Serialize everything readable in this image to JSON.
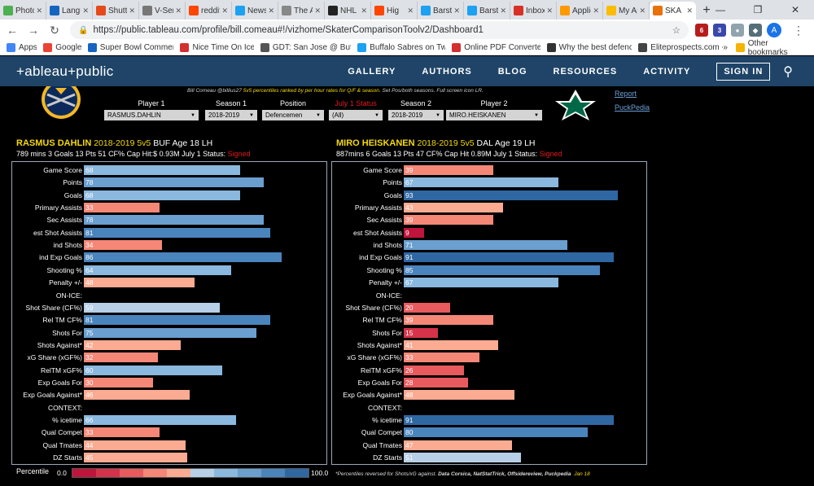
{
  "browser": {
    "tabs": [
      {
        "label": "PhotoS",
        "color": "#4caf50",
        "icon": "photo-icon"
      },
      {
        "label": "Langua",
        "color": "#1565c0",
        "icon": "medical-star-icon"
      },
      {
        "label": "Shutter",
        "color": "#e64a19",
        "icon": "shutterstock-icon"
      },
      {
        "label": "V-Serie",
        "color": "#777777",
        "icon": "page-icon"
      },
      {
        "label": "reddit:",
        "color": "#ff4500",
        "icon": "reddit-icon"
      },
      {
        "label": "News a",
        "color": "#1da1f2",
        "icon": "twitter-icon"
      },
      {
        "label": "The Au",
        "color": "#888888",
        "icon": "page-icon"
      },
      {
        "label": "NHL Ho",
        "color": "#222222",
        "icon": "nhl-icon"
      },
      {
        "label": "Hig",
        "color": "#ff4500",
        "icon": "reddit-icon"
      },
      {
        "label": "Barstoo",
        "color": "#1da1f2",
        "icon": "twitter-icon"
      },
      {
        "label": "Barstoo",
        "color": "#1da1f2",
        "icon": "twitter-icon"
      },
      {
        "label": "Inbox (",
        "color": "#d93025",
        "icon": "gmail-icon"
      },
      {
        "label": "Applica",
        "color": "#ff9900",
        "icon": "amazon-icon"
      },
      {
        "label": "My Ap",
        "color": "#fbbc04",
        "icon": "bulb-icon"
      },
      {
        "label": "SKA",
        "color": "#e8710a",
        "icon": "tableau-icon"
      }
    ],
    "new_tab": "+",
    "url": "https://public.tableau.com/profile/bill.comeau#!/vizhome/SkaterComparisonToolv2/Dashboard1",
    "bookmarks": [
      {
        "label": "Apps",
        "color": "#4285f4"
      },
      {
        "label": "Google",
        "color": "#ea4335"
      },
      {
        "label": "Super Bowl Commer",
        "color": "#1565c0"
      },
      {
        "label": "Nice Time On Ice",
        "color": "#d32f2f"
      },
      {
        "label": "GDT: San Jose @ Buf",
        "color": "#555555"
      },
      {
        "label": "Buffalo Sabres on Tw",
        "color": "#1da1f2"
      },
      {
        "label": "Online PDF Converte",
        "color": "#d32f2f"
      },
      {
        "label": "Why the best defenc",
        "color": "#333333"
      },
      {
        "label": "Eliteprospects.com -",
        "color": "#444444"
      }
    ],
    "bookmarks_more": "»",
    "other_bookmarks": "Other bookmarks",
    "avatar_letter": "A"
  },
  "tableau_header": {
    "logo": "+ableau+public",
    "nav": [
      "GALLERY",
      "AUTHORS",
      "BLOG",
      "RESOURCES",
      "ACTIVITY"
    ],
    "signin": "SIGN IN"
  },
  "dashboard": {
    "credit_prefix": "Bill Comeau @billius27  ",
    "credit_highlight": "5v5 percentiles ranked by per hour rates for Q/F & season.",
    "credit_suffix": "  Set Pos/both seasons. Full screen icon LR.",
    "filters": [
      {
        "label": "Player 1",
        "value": "RASMUS.DAHLIN",
        "red": false
      },
      {
        "label": "Season 1",
        "value": "2018-2019",
        "red": false
      },
      {
        "label": "Position",
        "value": "Defencemen",
        "red": false
      },
      {
        "label": "July 1 Status",
        "value": "(All)",
        "red": true
      },
      {
        "label": "Season 2",
        "value": "2018-2019",
        "red": false
      },
      {
        "label": "Player 2",
        "value": "MIRO.HEISKANEN",
        "red": false
      }
    ],
    "links": [
      "Report",
      "PuckPedia"
    ],
    "player1": {
      "name": "RASMUS DAHLIN",
      "season": "2018-2019",
      "strength": "5v5",
      "team": "BUF",
      "age": "Age 18",
      "hand": "LH",
      "stats": "789 mins  3  Goals  13  Pts  51  CF%  Cap Hit:$ 0.93M   July 1 Status: ",
      "status": "Signed"
    },
    "player2": {
      "name": "MIRO HEISKANEN",
      "season": "2018-2019",
      "strength": "5v5",
      "team": "DAL",
      "age": "Age 19",
      "hand": "LH",
      "stats": "887mins  6  Goals  13  Pts  47  CF%  Cap Hit  0.89M   July 1 Status: ",
      "status": "Signed"
    },
    "legend_title": "Percentile",
    "legend_min": "0.0",
    "legend_max": "100.0",
    "legend_colors": [
      "#c0143c",
      "#d6334a",
      "#e85a5e",
      "#f58777",
      "#fbab92",
      "#b7d0e8",
      "#8ab8de",
      "#6a9fcf",
      "#4a84bd",
      "#2f67a3"
    ],
    "footnote_prefix": "*Percentiles reversed for Shots/xG against. ",
    "footnote_sources": "Data Corsica, NatStatTrick, Offsidereview, Puckpedia",
    "footnote_date": "Jan 18"
  },
  "chart_data": [
    {
      "type": "bar",
      "title": "RASMUS DAHLIN 2018-2019 5v5",
      "categories": [
        "Game Score",
        "Points",
        "Goals",
        "Primary Assists",
        "Sec Assists",
        "est Shot Assists",
        "ind Shots",
        "ind Exp Goals",
        "Shooting %",
        "Penalty +/-",
        "ON-ICE:",
        "Shot Share (CF%)",
        "Rel TM CF%",
        "Shots For",
        "Shots Against*",
        "xG Share (xGF%)",
        "RelTM xGF%",
        "Exp Goals For",
        "Exp Goals Against*",
        "CONTEXT:",
        "% icetime",
        "Qual Compet",
        "Qual Tmates",
        "DZ Starts"
      ],
      "values": [
        68,
        78,
        68,
        33,
        78,
        81,
        34,
        86,
        64,
        48,
        null,
        59,
        81,
        75,
        42,
        32,
        60,
        30,
        46,
        null,
        66,
        33,
        44,
        45
      ],
      "xlim": [
        0,
        100
      ]
    },
    {
      "type": "bar",
      "title": "MIRO HEISKANEN 2018-2019 5v5",
      "categories": [
        "Game Score",
        "Points",
        "Goals",
        "Primary Assists",
        "Sec Assists",
        "est Shot Assists",
        "ind Shots",
        "ind Exp Goals",
        "Shooting %",
        "Penalty +/-",
        "ON-ICE:",
        "Shot Share (CF%)",
        "Rel TM CF%",
        "Shots For",
        "Shots Against*",
        "xG Share (xGF%)",
        "RelTM xGF%",
        "Exp Goals For",
        "Exp Goals Against*",
        "CONTEXT:",
        "% icetime",
        "Qual Compet",
        "Qual Tmates",
        "DZ Starts"
      ],
      "values": [
        39,
        67,
        93,
        43,
        39,
        9,
        71,
        91,
        85,
        67,
        null,
        20,
        39,
        15,
        41,
        33,
        26,
        28,
        48,
        null,
        91,
        80,
        47,
        51
      ],
      "xlim": [
        0,
        100
      ]
    }
  ]
}
